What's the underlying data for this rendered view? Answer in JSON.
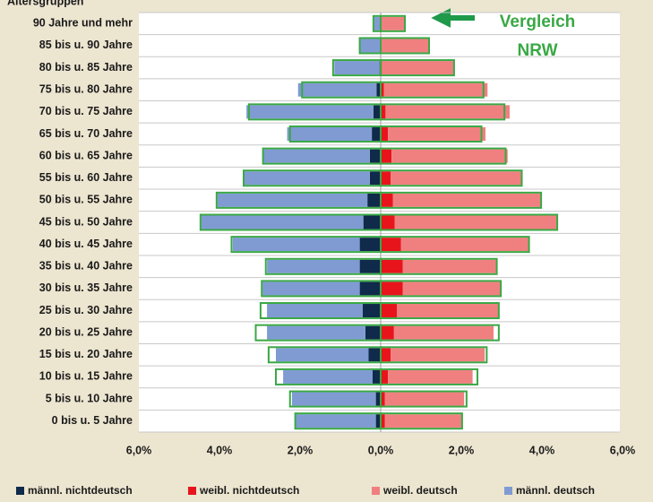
{
  "chart_data": {
    "type": "pyramid",
    "y_label": "Altersgruppen",
    "categories": [
      "90 Jahre und mehr",
      "85 bis u. 90 Jahre",
      "80 bis u. 85 Jahre",
      "75 bis u. 80 Jahre",
      "70 bis u. 75 Jahre",
      "65 bis u. 70 Jahre",
      "60 bis u. 65 Jahre",
      "55 bis u. 60 Jahre",
      "50 bis u. 55 Jahre",
      "45 bis u. 50 Jahre",
      "40 bis u. 45 Jahre",
      "35 bis u. 40 Jahre",
      "30 bis u. 35 Jahre",
      "25 bis u. 30 Jahre",
      "20 bis u. 25 Jahre",
      "15 bis u. 20 Jahre",
      "10 bis u. 15 Jahre",
      "5 bis u. 10 Jahre",
      "0 bis u. 5 Jahre"
    ],
    "series": [
      {
        "name": "männl. nichtdeutsch",
        "color": "#0f2a4a",
        "side": "male",
        "values": [
          -0.02,
          -0.02,
          -0.03,
          -0.1,
          -0.18,
          -0.22,
          -0.27,
          -0.27,
          -0.33,
          -0.43,
          -0.52,
          -0.52,
          -0.52,
          -0.45,
          -0.38,
          -0.3,
          -0.2,
          -0.12,
          -0.12
        ]
      },
      {
        "name": "weibl. nichtdeutsch",
        "color": "#e8141c",
        "side": "female",
        "values": [
          0.02,
          0.02,
          0.03,
          0.08,
          0.12,
          0.18,
          0.27,
          0.25,
          0.3,
          0.35,
          0.5,
          0.55,
          0.55,
          0.4,
          0.33,
          0.25,
          0.18,
          0.1,
          0.1
        ]
      },
      {
        "name": "weibl. deutsch",
        "color": "#f08080",
        "side": "female",
        "values": [
          0.58,
          1.16,
          1.77,
          2.57,
          3.08,
          2.42,
          2.88,
          3.23,
          3.68,
          4.03,
          3.17,
          2.32,
          2.42,
          2.53,
          2.47,
          2.33,
          2.1,
          1.97,
          1.9
        ]
      },
      {
        "name": "männl. deutsch",
        "color": "#7f9bd2",
        "side": "male",
        "values": [
          -0.14,
          -0.48,
          -1.12,
          -1.95,
          -3.15,
          -2.1,
          -2.63,
          -3.11,
          -3.72,
          -4.02,
          -3.15,
          -2.3,
          -2.41,
          -2.37,
          -2.44,
          -2.3,
          -2.22,
          -2.08,
          -1.98
        ]
      }
    ],
    "comparison": {
      "label": [
        "Vergleich",
        "NRW"
      ],
      "color": "#3aa845",
      "male": [
        -0.18,
        -0.52,
        -1.18,
        -1.95,
        -3.27,
        -2.25,
        -2.92,
        -3.4,
        -4.07,
        -4.47,
        -3.7,
        -2.85,
        -2.95,
        -2.98,
        -3.1,
        -2.78,
        -2.6,
        -2.25,
        -2.12
      ],
      "female": [
        0.6,
        1.2,
        1.82,
        2.55,
        3.07,
        2.5,
        3.1,
        3.5,
        3.98,
        4.38,
        3.68,
        2.88,
        2.98,
        2.93,
        2.93,
        2.63,
        2.4,
        2.13,
        2.02
      ]
    },
    "xlim": [
      -6,
      6
    ],
    "xticks": [
      {
        "value": -6,
        "label": "6,0%"
      },
      {
        "value": -4,
        "label": "4,0%"
      },
      {
        "value": -2,
        "label": "2,0%"
      },
      {
        "value": 0,
        "label": "0,0%"
      },
      {
        "value": 2,
        "label": "2,0%"
      },
      {
        "value": 4,
        "label": "4,0%"
      },
      {
        "value": 6,
        "label": "6,0%"
      }
    ],
    "legend_order": [
      0,
      1,
      2,
      3
    ]
  }
}
